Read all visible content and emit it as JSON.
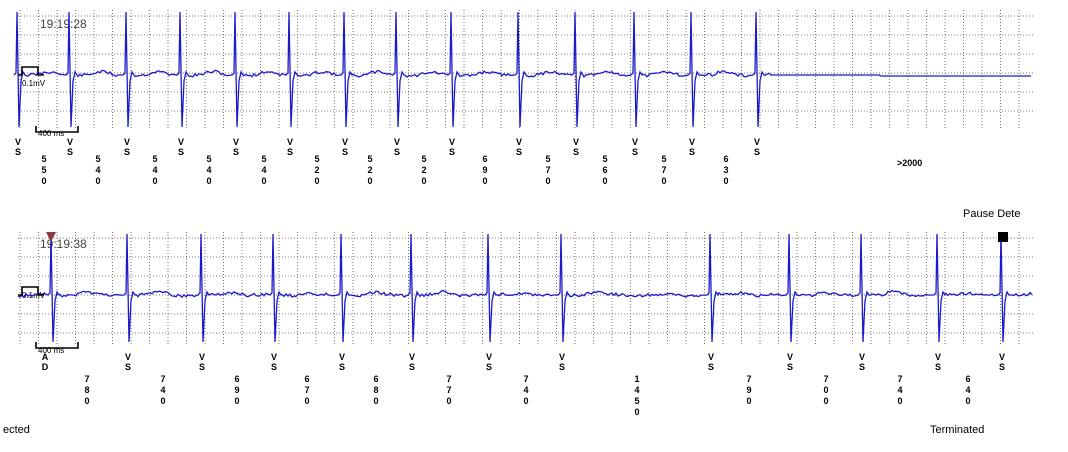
{
  "chart_data": {
    "type": "line",
    "title": "",
    "strips": [
      {
        "time": "19:19:28",
        "scale_mv": "0.1mV",
        "scale_ms": "400 ms",
        "beats": [
          {
            "label": "V\nS",
            "interval": ""
          },
          {
            "label": "V\nS",
            "interval": "550"
          },
          {
            "label": "V\nS",
            "interval": "540"
          },
          {
            "label": "V\nS",
            "interval": "540"
          },
          {
            "label": "V\nS",
            "interval": "540"
          },
          {
            "label": "V\nS",
            "interval": "540"
          },
          {
            "label": "V\nS",
            "interval": "520"
          },
          {
            "label": "V\nS",
            "interval": "520"
          },
          {
            "label": "V\nS",
            "interval": "520"
          },
          {
            "label": "V\nS",
            "interval": "690"
          },
          {
            "label": "V\nS",
            "interval": "570"
          },
          {
            "label": "V\nS",
            "interval": "560"
          },
          {
            "label": "V\nS",
            "interval": "570"
          },
          {
            "label": "V\nS",
            "interval": "630"
          }
        ],
        "trailing_interval": ">2000",
        "right_label": "Pause Dete"
      },
      {
        "time": "19:19:38",
        "scale_mv": "0.1mV",
        "scale_ms": "400 ms",
        "beats": [
          {
            "label": "A\nD",
            "interval": ""
          },
          {
            "label": "V\nS",
            "interval": "780"
          },
          {
            "label": "V\nS",
            "interval": "740"
          },
          {
            "label": "V\nS",
            "interval": "690"
          },
          {
            "label": "V\nS",
            "interval": "670"
          },
          {
            "label": "V\nS",
            "interval": "680"
          },
          {
            "label": "V\nS",
            "interval": "770"
          },
          {
            "label": "V\nS",
            "interval": "740"
          },
          {
            "label": "V\nS",
            "interval": "1450"
          },
          {
            "label": "V\nS",
            "interval": "790"
          },
          {
            "label": "V\nS",
            "interval": "700"
          },
          {
            "label": "V\nS",
            "interval": "740"
          },
          {
            "label": "V\nS",
            "interval": "640"
          }
        ],
        "left_label": "ected",
        "right_label": "Terminated"
      }
    ],
    "colors": {
      "trace": "#1a1acc",
      "grid": "#555555",
      "marker_triangle": "#8b3a3a"
    }
  }
}
